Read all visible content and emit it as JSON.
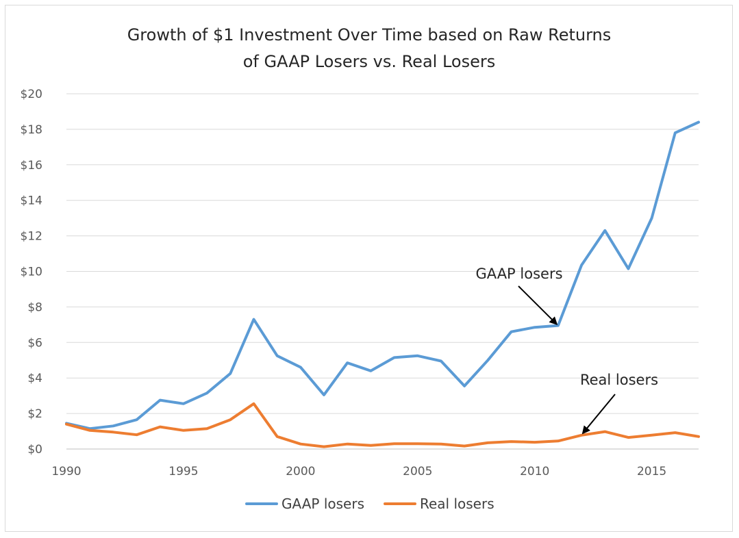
{
  "chart_data": {
    "type": "line",
    "title_lines": [
      "Growth of $1 Investment Over Time based on Raw Returns",
      "of GAAP Losers vs. Real Losers"
    ],
    "xlabel": "",
    "ylabel": "",
    "xlim": [
      1990,
      2017
    ],
    "ylim": [
      0,
      20
    ],
    "x_ticks": [
      "1990",
      "1995",
      "2000",
      "2005",
      "2010",
      "2015"
    ],
    "y_ticks": [
      "$0",
      "$2",
      "$4",
      "$6",
      "$8",
      "$10",
      "$12",
      "$14",
      "$16",
      "$18",
      "$20"
    ],
    "grid": "horizontal",
    "legend_position": "bottom",
    "x": [
      1990,
      1991,
      1992,
      1993,
      1994,
      1995,
      1996,
      1997,
      1998,
      1999,
      2000,
      2001,
      2002,
      2003,
      2004,
      2005,
      2006,
      2007,
      2008,
      2009,
      2010,
      2011,
      2012,
      2013,
      2014,
      2015,
      2016,
      2017
    ],
    "series": [
      {
        "name": "GAAP losers",
        "color": "#5b9bd5",
        "values": [
          1.45,
          1.15,
          1.3,
          1.65,
          2.75,
          2.55,
          3.15,
          4.25,
          7.3,
          5.25,
          4.6,
          3.05,
          4.85,
          4.4,
          5.15,
          5.25,
          4.95,
          3.55,
          5.0,
          6.6,
          6.85,
          6.95,
          10.35,
          12.3,
          10.15,
          13.0,
          17.8,
          18.4
        ]
      },
      {
        "name": "Real losers",
        "color": "#ed7d31",
        "values": [
          1.4,
          1.05,
          0.95,
          0.8,
          1.25,
          1.05,
          1.15,
          1.65,
          2.55,
          0.7,
          0.28,
          0.13,
          0.28,
          0.2,
          0.3,
          0.3,
          0.28,
          0.17,
          0.35,
          0.42,
          0.38,
          0.45,
          0.78,
          0.98,
          0.65,
          0.78,
          0.92,
          0.7
        ]
      }
    ],
    "annotations": [
      {
        "text": "GAAP losers",
        "points_to": {
          "x": 2011,
          "y": 6.95
        }
      },
      {
        "text": "Real losers",
        "points_to": {
          "x": 2012,
          "y": 0.8
        }
      }
    ]
  }
}
